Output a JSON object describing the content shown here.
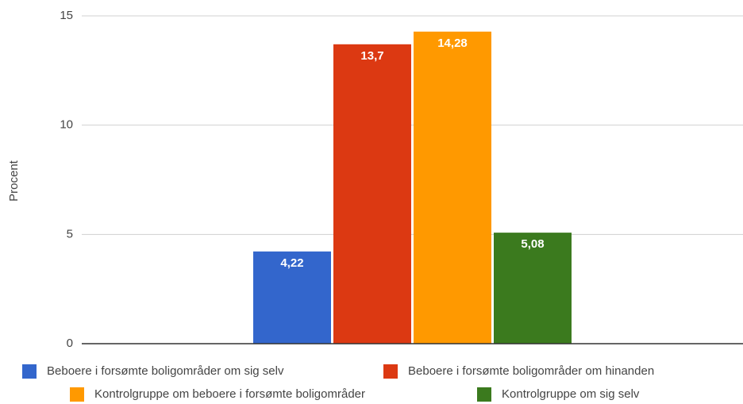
{
  "chart_data": {
    "type": "bar",
    "y_label": "Procent",
    "categories": [
      null
    ],
    "series": [
      {
        "name": "Beboere i forsømte boligområder om sig selv",
        "color": "#3366cc",
        "values": [
          4.22
        ],
        "value_labels": [
          "4,22"
        ]
      },
      {
        "name": "Beboere i forsømte boligområder om hinanden",
        "color": "#dc3912",
        "values": [
          13.7
        ],
        "value_labels": [
          "13,7"
        ]
      },
      {
        "name": "Kontrolgruppe om beboere i forsømte boligområder",
        "color": "#ff9900",
        "values": [
          14.28
        ],
        "value_labels": [
          "14,28"
        ]
      },
      {
        "name": "Kontrolgruppe om sig selv",
        "color": "#3b7a1e",
        "values": [
          5.08
        ],
        "value_labels": [
          "5,08"
        ]
      }
    ],
    "ylim": [
      0,
      15
    ],
    "yticks": [
      0,
      5,
      10,
      15
    ],
    "grid": true,
    "legend": "bottom"
  }
}
